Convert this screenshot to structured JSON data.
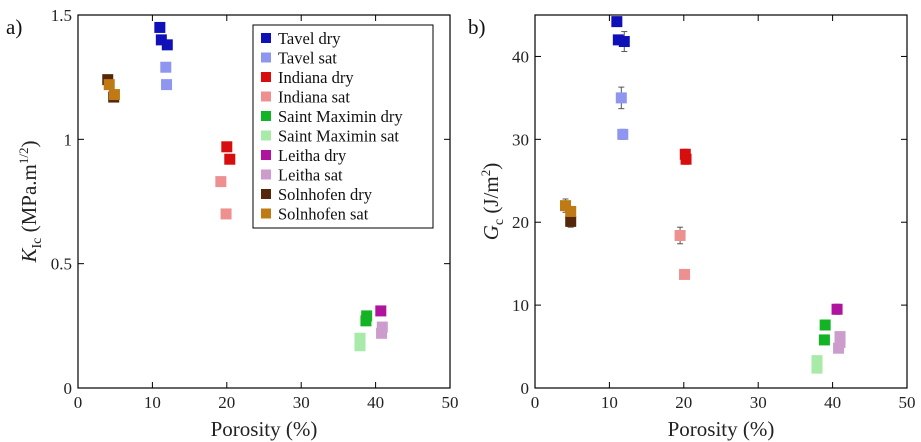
{
  "series_styles": [
    {
      "name": "Tavel dry",
      "color": "#1010b8"
    },
    {
      "name": "Tavel sat",
      "color": "#8e96f0"
    },
    {
      "name": "Indiana dry",
      "color": "#d80e0e"
    },
    {
      "name": "Indiana sat",
      "color": "#ee9090"
    },
    {
      "name": "Saint Maximin dry",
      "color": "#12b425"
    },
    {
      "name": "Saint Maximin sat",
      "color": "#a8eaa8"
    },
    {
      "name": "Leitha dry",
      "color": "#b0149e"
    },
    {
      "name": "Leitha sat",
      "color": "#cc9ccc"
    },
    {
      "name": "Solnhofen dry",
      "color": "#55260a"
    },
    {
      "name": "Solnhofen sat",
      "color": "#bf7a14"
    }
  ],
  "chart_data": [
    {
      "type": "scatter",
      "panel_label": "a)",
      "xlabel": "Porosity (%)",
      "ylabel": "K_Ic (MPa.m^1/2)",
      "ylabel_parts": {
        "main": "K",
        "sub": "Ic",
        "rest": " (MPa.m",
        "sup": "1/2",
        "end": ")"
      },
      "xlim": [
        0,
        50
      ],
      "ylim": [
        0,
        1.5
      ],
      "xticks": [
        "0",
        "10",
        "20",
        "30",
        "40",
        "50"
      ],
      "yticks": [
        "0",
        "0.5",
        "1",
        "1.5"
      ],
      "grid": false,
      "legend": "top-right",
      "series": [
        {
          "name": "Tavel dry",
          "points": [
            [
              11.0,
              1.45
            ],
            [
              11.2,
              1.4
            ],
            [
              12.0,
              1.38
            ]
          ]
        },
        {
          "name": "Tavel sat",
          "points": [
            [
              11.8,
              1.29
            ],
            [
              11.9,
              1.22
            ]
          ]
        },
        {
          "name": "Indiana dry",
          "points": [
            [
              20.0,
              0.97
            ],
            [
              20.4,
              0.92
            ]
          ]
        },
        {
          "name": "Indiana sat",
          "points": [
            [
              19.2,
              0.83
            ],
            [
              19.9,
              0.7
            ]
          ]
        },
        {
          "name": "Saint Maximin dry",
          "points": [
            [
              38.8,
              0.29
            ],
            [
              38.7,
              0.27
            ]
          ]
        },
        {
          "name": "Saint Maximin sat",
          "points": [
            [
              37.9,
              0.2
            ],
            [
              37.9,
              0.17
            ]
          ]
        },
        {
          "name": "Leitha dry",
          "points": [
            [
              40.7,
              0.31
            ]
          ]
        },
        {
          "name": "Leitha sat",
          "points": [
            [
              40.9,
              0.245
            ],
            [
              40.8,
              0.22
            ]
          ]
        },
        {
          "name": "Solnhofen dry",
          "points": [
            [
              4.0,
              1.24
            ],
            [
              4.8,
              1.17
            ]
          ]
        },
        {
          "name": "Solnhofen sat",
          "points": [
            [
              4.2,
              1.22
            ],
            [
              4.9,
              1.18
            ]
          ]
        }
      ]
    },
    {
      "type": "scatter",
      "panel_label": "b)",
      "xlabel": "Porosity (%)",
      "ylabel": "G_c (J/m^2)",
      "ylabel_parts": {
        "main": "G",
        "sub": "c",
        "rest": " (J/m",
        "sup": "2",
        "end": ")"
      },
      "xlim": [
        0,
        50
      ],
      "ylim": [
        0,
        45
      ],
      "xticks": [
        "0",
        "10",
        "20",
        "30",
        "40",
        "50"
      ],
      "yticks": [
        "0",
        "10",
        "20",
        "30",
        "40"
      ],
      "grid": false,
      "legend": "none",
      "series": [
        {
          "name": "Tavel dry",
          "points": [
            [
              11.0,
              44.2
            ],
            [
              11.2,
              42.0
            ],
            [
              12.0,
              41.8
            ]
          ],
          "err": [
            0,
            0,
            1.2
          ]
        },
        {
          "name": "Tavel sat",
          "points": [
            [
              11.6,
              35.0
            ],
            [
              11.8,
              30.6
            ]
          ],
          "err": [
            1.3,
            0.6
          ]
        },
        {
          "name": "Indiana dry",
          "points": [
            [
              20.2,
              28.2
            ],
            [
              20.3,
              27.6
            ]
          ],
          "err": [
            0.6,
            0.6
          ]
        },
        {
          "name": "Indiana sat",
          "points": [
            [
              19.5,
              18.4
            ],
            [
              20.1,
              13.7
            ]
          ],
          "err": [
            1.0,
            0.4
          ]
        },
        {
          "name": "Saint Maximin dry",
          "points": [
            [
              39.0,
              7.6
            ],
            [
              38.9,
              5.8
            ]
          ],
          "err": [
            0,
            0
          ]
        },
        {
          "name": "Saint Maximin sat",
          "points": [
            [
              37.9,
              3.3
            ],
            [
              37.9,
              2.4
            ]
          ],
          "err": [
            0.5,
            0.5
          ]
        },
        {
          "name": "Leitha dry",
          "points": [
            [
              40.6,
              9.5
            ]
          ],
          "err": [
            0.6
          ]
        },
        {
          "name": "Leitha sat",
          "points": [
            [
              41.0,
              6.2
            ],
            [
              41.0,
              5.5
            ],
            [
              40.8,
              4.8
            ]
          ],
          "err": [
            0.4,
            0.4,
            0.4
          ]
        },
        {
          "name": "Solnhofen dry",
          "points": [
            [
              4.8,
              20.1
            ]
          ],
          "err": [
            0.7
          ]
        },
        {
          "name": "Solnhofen sat",
          "points": [
            [
              4.1,
              22.0
            ],
            [
              4.8,
              21.3
            ]
          ],
          "err": [
            0.8,
            0.6
          ]
        }
      ]
    }
  ]
}
